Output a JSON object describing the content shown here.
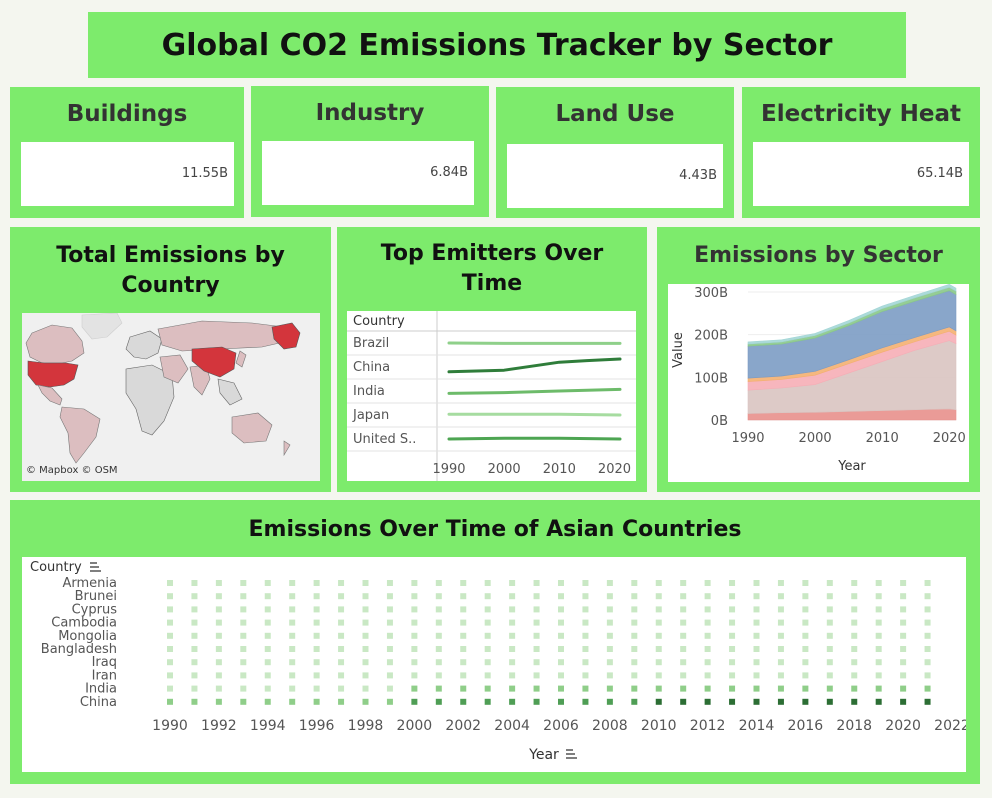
{
  "dashboard": {
    "title": "Global CO2 Emissions Tracker by Sector"
  },
  "kpis": [
    {
      "label": "Buildings",
      "value": "11.55B"
    },
    {
      "label": "Industry",
      "value": "6.84B"
    },
    {
      "label": "Land Use",
      "value": "4.43B"
    },
    {
      "label": "Electricity Heat",
      "value": "65.14B"
    }
  ],
  "map": {
    "title": "Total Emissions by Country",
    "attribution": "© Mapbox © OSM"
  },
  "top_emitters": {
    "title": "Top Emitters Over Time",
    "column_header": "Country"
  },
  "sector_chart": {
    "title": "Emissions by Sector"
  },
  "asian_chart": {
    "title": "Emissions Over Time of Asian Countries"
  },
  "chart_data": [
    {
      "type": "line",
      "title": "Top Emitters Over Time",
      "row_header": "Country",
      "categories": [
        "Brazil",
        "China",
        "India",
        "Japan",
        "United S.."
      ],
      "x_ticks": [
        "1990",
        "2000",
        "2010",
        "2020"
      ],
      "x_range": [
        1990,
        2021
      ],
      "series": [
        {
          "name": "Brazil",
          "x": [
            1990,
            2000,
            2010,
            2021
          ],
          "y": [
            0.5,
            0.48,
            0.48,
            0.48
          ],
          "color": "#8fd08a"
        },
        {
          "name": "China",
          "x": [
            1990,
            1995,
            2000,
            2005,
            2010,
            2015,
            2021
          ],
          "y": [
            0.2,
            0.25,
            0.3,
            0.55,
            0.8,
            0.9,
            1.0
          ],
          "color": "#2f7d3a"
        },
        {
          "name": "India",
          "x": [
            1990,
            2000,
            2010,
            2021
          ],
          "y": [
            0.35,
            0.4,
            0.5,
            0.6
          ],
          "color": "#6dbb6a"
        },
        {
          "name": "Japan",
          "x": [
            1990,
            2000,
            2010,
            2021
          ],
          "y": [
            0.55,
            0.55,
            0.55,
            0.5
          ],
          "color": "#a6dca0"
        },
        {
          "name": "United S..",
          "x": [
            1990,
            2000,
            2010,
            2021
          ],
          "y": [
            0.5,
            0.55,
            0.55,
            0.5
          ],
          "color": "#4da552"
        }
      ]
    },
    {
      "type": "area",
      "title": "Emissions by Sector",
      "xlabel": "Year",
      "ylabel": "Value",
      "x_ticks": [
        "1990",
        "2000",
        "2010",
        "2020"
      ],
      "y_ticks": [
        "0B",
        "100B",
        "200B",
        "300B"
      ],
      "x_range": [
        1990,
        2021
      ],
      "y_range": [
        0,
        300
      ],
      "x": [
        1990,
        1995,
        2000,
        2005,
        2010,
        2015,
        2020,
        2021
      ],
      "series": [
        {
          "values": [
            15,
            17,
            18,
            20,
            22,
            24,
            26,
            24
          ],
          "color": "#e8908c"
        },
        {
          "values": [
            55,
            58,
            65,
            90,
            115,
            140,
            160,
            155
          ],
          "color": "#d9c4c1"
        },
        {
          "values": [
            20,
            20,
            22,
            22,
            22,
            20,
            22,
            20
          ],
          "color": "#f6aeb6"
        },
        {
          "values": [
            8,
            8,
            9,
            9,
            10,
            10,
            10,
            10
          ],
          "color": "#f4b071"
        },
        {
          "values": [
            75,
            75,
            78,
            80,
            85,
            85,
            85,
            85
          ],
          "color": "#7c9cc4"
        },
        {
          "values": [
            5,
            5,
            6,
            6,
            7,
            8,
            8,
            8
          ],
          "color": "#8ac88a"
        },
        {
          "values": [
            5,
            5,
            5,
            6,
            6,
            6,
            7,
            7
          ],
          "color": "#a3d6d6"
        }
      ]
    },
    {
      "type": "heatmap",
      "title": "Emissions Over Time of Asian Countries",
      "xlabel": "Year",
      "ylabel": "Country",
      "categories": [
        "Armenia",
        "Brunei",
        "Cyprus",
        "Cambodia",
        "Mongolia",
        "Bangladesh",
        "Iraq",
        "Iran",
        "India",
        "China"
      ],
      "x_ticks": [
        "1990",
        "1992",
        "1994",
        "1996",
        "1998",
        "2000",
        "2002",
        "2004",
        "2006",
        "2008",
        "2010",
        "2012",
        "2014",
        "2016",
        "2018",
        "2020",
        "2022"
      ],
      "x_range": [
        1990,
        2021
      ]
    }
  ]
}
